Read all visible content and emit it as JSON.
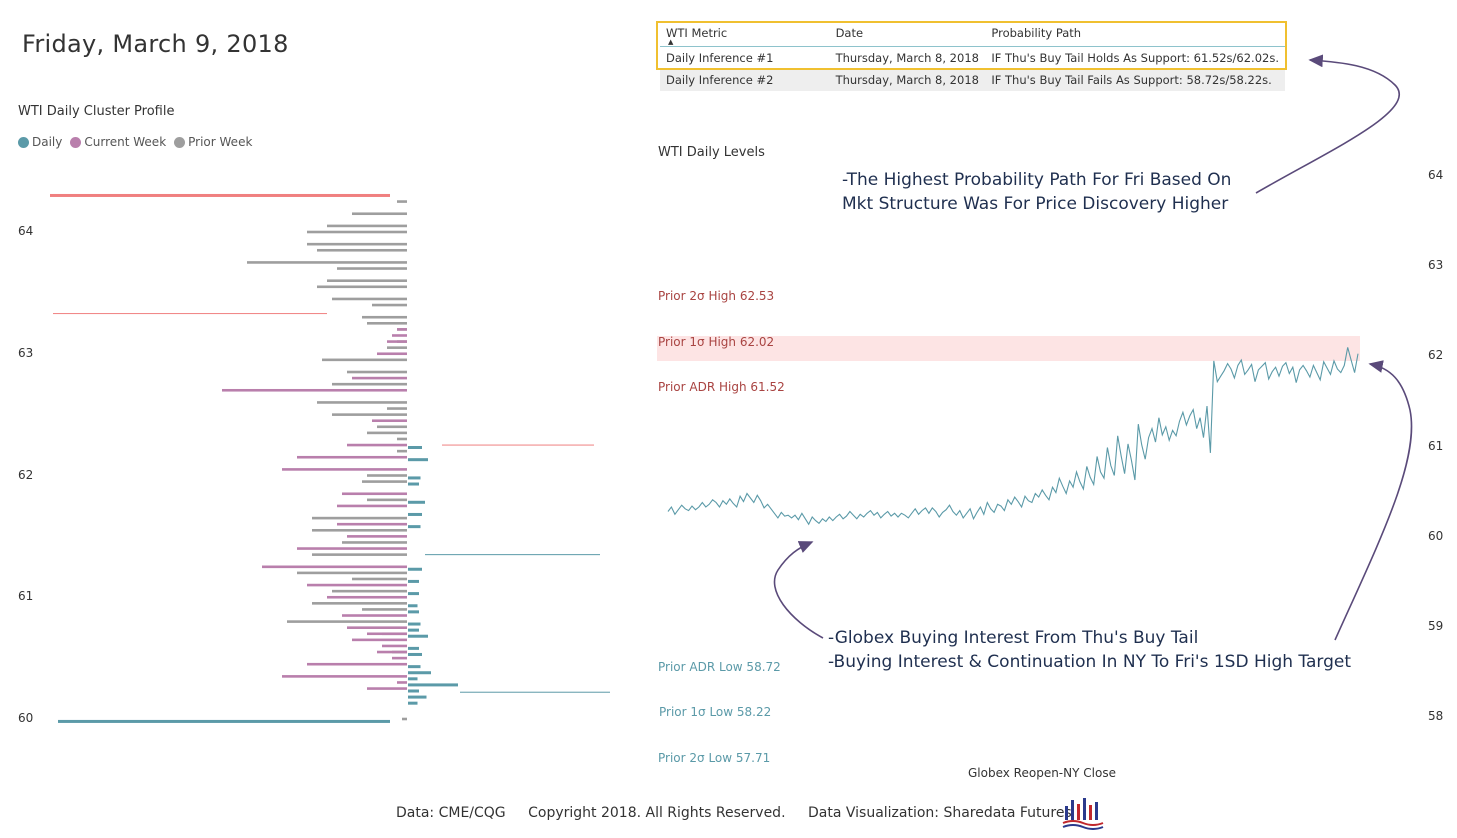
{
  "page": {
    "title": "Friday, March 9, 2018",
    "footer": {
      "data_source": "Data: CME/CQG",
      "copyright": "Copyright 2018. All Rights Reserved.",
      "credit": "Data Visualization: Sharedata Futures"
    }
  },
  "colors": {
    "daily": "#5b9aa8",
    "current_week": "#b97fac",
    "prior_week": "#9e9e9e",
    "high_level": "#a94442",
    "low_level": "#5b9aa8",
    "band": "#fde4e4",
    "highlight": "#f0c030",
    "annotation": "#1f2f4f",
    "arrow": "#5a4a7a"
  },
  "inference_table": {
    "columns": [
      "WTI Metric",
      "Date",
      "Probability Path"
    ],
    "rows": [
      {
        "metric": "Daily Inference #1",
        "date": "Thursday, March 8, 2018",
        "path": "IF Thu's Buy Tail Holds As Support: 61.52s/62.02s."
      },
      {
        "metric": "Daily Inference #2",
        "date": "Thursday, March 8, 2018",
        "path": "IF Thu's Buy Tail Fails As Support: 58.72s/58.22s."
      }
    ]
  },
  "annotations": {
    "top": [
      "-The Highest Probability Path For Fri Based On",
      "Mkt Structure Was For Price Discovery Higher"
    ],
    "bottom": [
      "-Globex Buying Interest From Thu's Buy Tail",
      "-Buying Interest & Continuation In NY To Fri's 1SD High Target"
    ]
  },
  "chart_data": [
    {
      "type": "bar",
      "orientation": "horizontal",
      "title": "WTI Daily Cluster Profile",
      "legend": [
        "Daily",
        "Current Week",
        "Prior Week"
      ],
      "y_ticks": [
        64,
        63,
        62,
        61,
        60
      ],
      "ylim": [
        59.9,
        64.35
      ],
      "price_step": 0.05,
      "prior_week_extreme_lines": [
        {
          "price": 64.3,
          "value": 210
        },
        {
          "price": 63.33,
          "value": 170
        }
      ],
      "current_week_profile": [
        {
          "price": 63.2,
          "value": 10
        },
        {
          "price": 63.15,
          "value": 15
        },
        {
          "price": 63.1,
          "value": 20
        },
        {
          "price": 63.0,
          "value": 30
        },
        {
          "price": 62.8,
          "value": 55
        },
        {
          "price": 62.7,
          "value": 185
        },
        {
          "price": 62.45,
          "value": 35
        },
        {
          "price": 62.25,
          "value": 60
        },
        {
          "price": 62.15,
          "value": 110
        },
        {
          "price": 62.05,
          "value": 125
        },
        {
          "price": 61.85,
          "value": 65
        },
        {
          "price": 61.75,
          "value": 70
        },
        {
          "price": 61.6,
          "value": 70
        },
        {
          "price": 61.5,
          "value": 60
        },
        {
          "price": 61.4,
          "value": 110
        },
        {
          "price": 61.25,
          "value": 145
        },
        {
          "price": 61.1,
          "value": 100
        },
        {
          "price": 61.0,
          "value": 80
        },
        {
          "price": 60.85,
          "value": 65
        },
        {
          "price": 60.75,
          "value": 60
        },
        {
          "price": 60.7,
          "value": 40
        },
        {
          "price": 60.65,
          "value": 55
        },
        {
          "price": 60.6,
          "value": 25
        },
        {
          "price": 60.55,
          "value": 30
        },
        {
          "price": 60.5,
          "value": 15
        },
        {
          "price": 60.45,
          "value": 100
        },
        {
          "price": 60.35,
          "value": 125
        },
        {
          "price": 60.3,
          "value": 10
        },
        {
          "price": 60.25,
          "value": 40
        }
      ],
      "prior_week_profile": [
        {
          "price": 64.25,
          "value": 10
        },
        {
          "price": 64.15,
          "value": 55
        },
        {
          "price": 64.05,
          "value": 80
        },
        {
          "price": 64.0,
          "value": 100
        },
        {
          "price": 63.9,
          "value": 100
        },
        {
          "price": 63.85,
          "value": 90
        },
        {
          "price": 63.75,
          "value": 160
        },
        {
          "price": 63.7,
          "value": 70
        },
        {
          "price": 63.6,
          "value": 80
        },
        {
          "price": 63.55,
          "value": 90
        },
        {
          "price": 63.45,
          "value": 75
        },
        {
          "price": 63.4,
          "value": 35
        },
        {
          "price": 63.3,
          "value": 45
        },
        {
          "price": 63.25,
          "value": 40
        },
        {
          "price": 63.2,
          "value": 10
        },
        {
          "price": 63.1,
          "value": 10
        },
        {
          "price": 63.05,
          "value": 20
        },
        {
          "price": 62.95,
          "value": 85
        },
        {
          "price": 62.85,
          "value": 60
        },
        {
          "price": 62.75,
          "value": 75
        },
        {
          "price": 62.6,
          "value": 90
        },
        {
          "price": 62.55,
          "value": 20
        },
        {
          "price": 62.5,
          "value": 75
        },
        {
          "price": 62.4,
          "value": 30
        },
        {
          "price": 62.35,
          "value": 40
        },
        {
          "price": 62.3,
          "value": 10
        },
        {
          "price": 62.2,
          "value": 10
        },
        {
          "price": 62.0,
          "value": 40
        },
        {
          "price": 61.95,
          "value": 45
        },
        {
          "price": 61.8,
          "value": 40
        },
        {
          "price": 61.65,
          "value": 95
        },
        {
          "price": 61.55,
          "value": 95
        },
        {
          "price": 61.45,
          "value": 65
        },
        {
          "price": 61.35,
          "value": 95
        },
        {
          "price": 61.2,
          "value": 110
        },
        {
          "price": 61.15,
          "value": 55
        },
        {
          "price": 61.05,
          "value": 75
        },
        {
          "price": 60.95,
          "value": 95
        },
        {
          "price": 60.9,
          "value": 45
        },
        {
          "price": 60.8,
          "value": 120
        },
        {
          "price": 60.7,
          "value": 25
        },
        {
          "price": 60.55,
          "value": 15
        },
        {
          "price": 60.0,
          "value": 5
        }
      ],
      "daily_profile": [
        {
          "price": 62.23,
          "value": 20
        },
        {
          "price": 62.13,
          "value": 40
        },
        {
          "price": 61.98,
          "value": 15
        },
        {
          "price": 61.93,
          "value": 10
        },
        {
          "price": 61.78,
          "value": 30
        },
        {
          "price": 61.68,
          "value": 20
        },
        {
          "price": 61.58,
          "value": 15
        },
        {
          "price": 61.23,
          "value": 20
        },
        {
          "price": 61.13,
          "value": 10
        },
        {
          "price": 61.03,
          "value": 10
        },
        {
          "price": 60.93,
          "value": 5
        },
        {
          "price": 60.88,
          "value": 10
        },
        {
          "price": 60.78,
          "value": 15
        },
        {
          "price": 60.73,
          "value": 10
        },
        {
          "price": 60.68,
          "value": 40
        },
        {
          "price": 60.58,
          "value": 10
        },
        {
          "price": 60.53,
          "value": 20
        },
        {
          "price": 60.43,
          "value": 15
        },
        {
          "price": 60.38,
          "value": 50
        },
        {
          "price": 60.33,
          "value": 5
        },
        {
          "price": 60.28,
          "value": 140
        },
        {
          "price": 60.23,
          "value": 10
        },
        {
          "price": 60.18,
          "value": 35
        },
        {
          "price": 60.13,
          "value": 5
        }
      ],
      "daily_extreme_lines": [
        {
          "price": 59.98,
          "value": 275
        },
        {
          "price": 62.25,
          "value": 150,
          "side": "right"
        },
        {
          "price": 61.35,
          "value": 175,
          "side": "right"
        },
        {
          "price": 60.22,
          "value": 150,
          "side": "right"
        }
      ]
    },
    {
      "type": "line",
      "title": "WTI Daily Levels",
      "xlabel": "Globex Reopen-NY Close",
      "y_ticks": [
        64,
        63,
        62,
        61,
        60,
        59,
        58
      ],
      "ylim": [
        57.7,
        64.15
      ],
      "levels": [
        {
          "label": "Prior 2σ High 62.53",
          "value": 62.53,
          "kind": "high"
        },
        {
          "label": "Prior 1σ High 62.02",
          "value": 62.02,
          "kind": "high"
        },
        {
          "label": "Prior ADR High 61.52",
          "value": 61.52,
          "kind": "high"
        },
        {
          "label": "Prior ADR Low 58.72",
          "value": 58.72,
          "kind": "low"
        },
        {
          "label": "Prior 1σ Low 58.22",
          "value": 58.22,
          "kind": "low"
        },
        {
          "label": "Prior 2σ Low 57.71",
          "value": 57.71,
          "kind": "low"
        }
      ],
      "band": {
        "from": 61.88,
        "to": 62.12
      },
      "series": [
        {
          "name": "WTI Price",
          "values": [
            60.28,
            60.33,
            60.25,
            60.3,
            60.35,
            60.31,
            60.29,
            60.34,
            60.3,
            60.33,
            60.38,
            60.33,
            60.36,
            60.41,
            60.38,
            60.33,
            60.4,
            60.36,
            60.42,
            60.37,
            60.33,
            60.45,
            60.39,
            60.48,
            60.43,
            60.38,
            60.46,
            60.4,
            60.32,
            60.36,
            60.31,
            60.26,
            60.21,
            60.27,
            60.23,
            60.24,
            60.21,
            60.24,
            60.19,
            60.26,
            60.2,
            60.14,
            60.22,
            60.18,
            60.15,
            60.2,
            60.17,
            60.22,
            60.18,
            60.22,
            60.25,
            60.2,
            60.23,
            60.28,
            60.24,
            60.2,
            60.25,
            60.22,
            60.26,
            60.29,
            60.24,
            60.27,
            60.21,
            60.25,
            60.28,
            60.23,
            60.26,
            60.22,
            60.26,
            60.24,
            60.21,
            60.26,
            60.31,
            60.25,
            60.29,
            60.32,
            60.26,
            60.32,
            60.28,
            60.22,
            60.27,
            60.3,
            60.35,
            60.28,
            60.24,
            60.29,
            60.21,
            60.26,
            60.31,
            60.2,
            60.27,
            60.33,
            60.25,
            60.38,
            60.31,
            60.27,
            60.36,
            60.34,
            60.29,
            60.41,
            60.36,
            60.44,
            60.39,
            60.33,
            60.45,
            60.4,
            60.38,
            60.48,
            60.44,
            60.52,
            60.46,
            60.41,
            60.55,
            60.49,
            60.65,
            60.56,
            60.48,
            60.62,
            60.55,
            60.72,
            60.61,
            60.53,
            60.78,
            60.66,
            60.58,
            60.89,
            60.72,
            60.65,
            60.99,
            60.79,
            60.68,
            61.12,
            60.9,
            60.7,
            61.03,
            60.85,
            60.63,
            61.25,
            61.02,
            60.86,
            61.1,
            61.2,
            61.05,
            61.32,
            61.13,
            61.22,
            61.07,
            61.18,
            61.12,
            61.28,
            61.38,
            61.24,
            61.34,
            61.41,
            61.2,
            61.32,
            61.1,
            61.45,
            60.93,
            61.95,
            61.72,
            61.78,
            61.84,
            61.92,
            61.86,
            61.76,
            61.9,
            61.96,
            61.8,
            61.85,
            61.91,
            61.72,
            61.85,
            61.89,
            61.93,
            61.75,
            61.83,
            61.88,
            61.78,
            61.89,
            61.93,
            61.81,
            61.88,
            61.71,
            61.85,
            61.9,
            61.84,
            61.77,
            61.9,
            61.82,
            61.74,
            61.94,
            61.87,
            61.8,
            61.95,
            61.86,
            61.82,
            61.9,
            62.1,
            61.96,
            61.82,
            62.03
          ]
        }
      ]
    }
  ]
}
